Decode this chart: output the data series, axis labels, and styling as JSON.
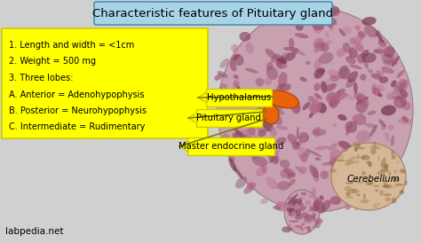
{
  "title": "Characteristic features of Pituitary gland",
  "title_box_color": "#A8D4E8",
  "title_fontsize": 9.5,
  "bg_color": "#D0D0D0",
  "yellow_box_text": [
    "1. Length and width = <1cm",
    "2. Weight = 500 mg",
    "3. Three lobes:",
    "A. Anterior = Adenohypophysis",
    "B. Posterior = Neurohypophysis",
    "C. Intermediate = Rudimentary"
  ],
  "yellow_box_color": "#FFFF00",
  "label_hypothalamus": "Hypothalamus",
  "label_pituitary": "Pituitary gland",
  "label_master": "Master endocrine gland",
  "label_cerebellum": "Cerebellum",
  "label_labpedia": "labpedia.net",
  "text_color": "#000000",
  "orange_color": "#E8630A",
  "brain_base_color": "#C8A0B0",
  "brain_spot_colors": [
    "#8B4560",
    "#9B5070",
    "#AA6080",
    "#7A3550",
    "#B87090"
  ],
  "cerebellum_base": "#D4B898",
  "cerebellum_spot_colors": [
    "#9B7040",
    "#8B6030",
    "#AA8050"
  ]
}
